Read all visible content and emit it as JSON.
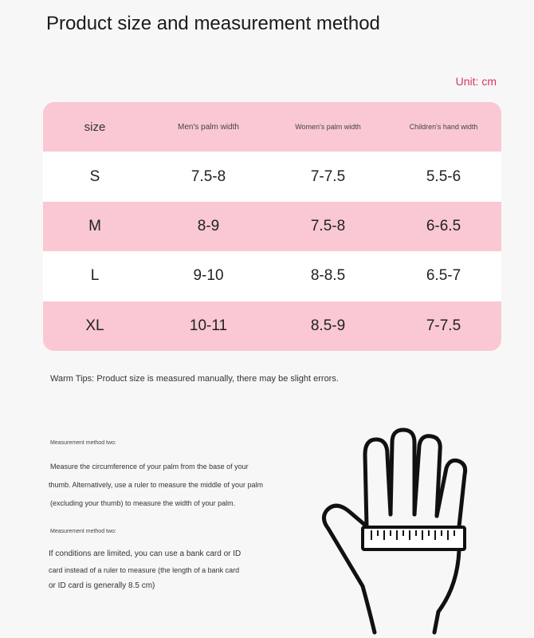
{
  "title": "Product size and measurement method",
  "unit": "Unit: cm",
  "table": {
    "headers": [
      "size",
      "Men's palm width",
      "Women's palm width",
      "Children's hand width"
    ],
    "rows": [
      [
        "S",
        "7.5-8",
        "7-7.5",
        "5.5-6"
      ],
      [
        "M",
        "8-9",
        "7.5-8",
        "6-6.5"
      ],
      [
        "L",
        "9-10",
        "8-8.5",
        "6.5-7"
      ],
      [
        "XL",
        "10-11",
        "8.5-9",
        "7-7.5"
      ]
    ]
  },
  "tips": "Warm Tips: Product size is measured manually, there may be slight errors.",
  "method1": {
    "label": "Measurement method two:",
    "lines": [
      "Measure the circumference of your palm from the base of your",
      "thumb. Alternatively, use a ruler to measure the middle of your palm",
      "(excluding your thumb) to measure the width of your palm."
    ]
  },
  "method2": {
    "label": "Measurement method two:",
    "lines": [
      "If conditions are limited, you can use a bank card or ID",
      "card instead of a ruler to measure (the length of a bank card",
      "or ID card is generally 8.5 cm)"
    ]
  },
  "colors": {
    "pink": "#f9c8d3",
    "accent": "#d8345f",
    "background": "#f7f7f7"
  },
  "illustration": "hand-with-ruler-icon"
}
